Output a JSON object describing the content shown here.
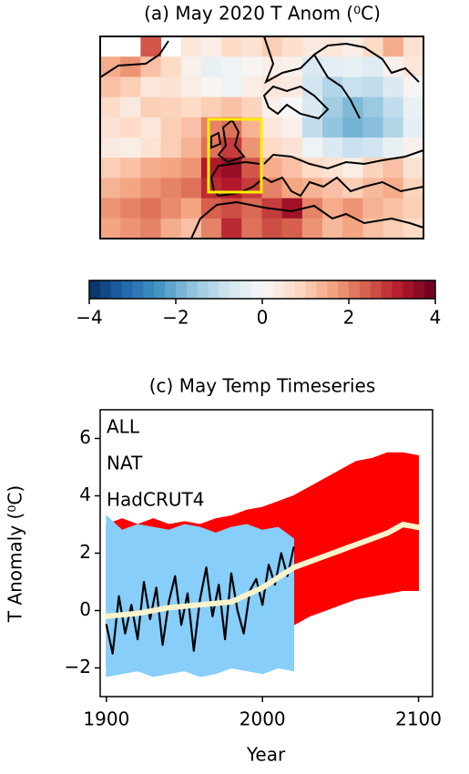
{
  "chart_data": [
    {
      "type": "heatmap",
      "title": "(a) May 2020 T Anom (⁰C)",
      "colormap": [
        "#053061",
        "#2166ac",
        "#4393c3",
        "#92c5de",
        "#d1e5f0",
        "#f7f7f7",
        "#fddbc7",
        "#f4a582",
        "#d6604d",
        "#b2182b",
        "#67001f"
      ],
      "clim": [
        -4,
        4
      ],
      "cticks": [
        {
          "value": -4,
          "label": "−4"
        },
        {
          "value": -2,
          "label": "−2"
        },
        0,
        2,
        4
      ],
      "values": [
        [
          null,
          null,
          2.5,
          null,
          0.5,
          0.3,
          0.8,
          0.6,
          1.0,
          0.7,
          0.4,
          0.5,
          0.3,
          0.8,
          1.5,
          0.6
        ],
        [
          1.5,
          1.8,
          1.2,
          0.8,
          0.2,
          -0.3,
          -0.2,
          0.1,
          0.3,
          0.2,
          -0.6,
          -0.4,
          -0.3,
          -0.5,
          0.2,
          0.5
        ],
        [
          1.2,
          1.0,
          0.5,
          0.6,
          0.3,
          0.1,
          -0.2,
          0.3,
          0.5,
          0.4,
          -0.8,
          -1.2,
          -0.9,
          -1.0,
          -0.6,
          0.1
        ],
        [
          0.8,
          0.4,
          1.0,
          0.9,
          0.8,
          1.0,
          1.2,
          0.9,
          0.2,
          0.0,
          -0.6,
          -1.4,
          -1.8,
          -1.5,
          -1.0,
          -0.3
        ],
        [
          0.6,
          0.8,
          0.5,
          1.0,
          1.2,
          2.0,
          2.2,
          1.4,
          0.5,
          0.2,
          -1.0,
          -1.6,
          -1.9,
          -1.7,
          -1.2,
          -0.4
        ],
        [
          0.4,
          0.3,
          0.6,
          1.0,
          1.4,
          2.2,
          2.8,
          1.8,
          0.8,
          0.6,
          -0.2,
          -0.6,
          -0.9,
          -0.8,
          -0.3,
          0.2
        ],
        [
          1.0,
          1.2,
          1.5,
          1.6,
          1.8,
          3.2,
          3.5,
          2.5,
          1.5,
          1.2,
          0.8,
          0.6,
          0.3,
          0.9,
          1.2,
          0.6
        ],
        [
          1.4,
          1.6,
          1.8,
          2.0,
          2.2,
          3.0,
          3.2,
          2.8,
          2.0,
          1.6,
          1.4,
          1.2,
          1.0,
          1.3,
          1.5,
          0.9
        ],
        [
          1.8,
          2.0,
          2.2,
          1.9,
          1.6,
          2.4,
          2.6,
          2.3,
          2.8,
          3.4,
          2.0,
          1.5,
          1.8,
          1.4,
          1.2,
          1.0
        ],
        [
          1.6,
          1.8,
          2.0,
          1.5,
          1.2,
          2.0,
          3.0,
          2.2,
          2.6,
          2.4,
          1.8,
          1.3,
          1.6,
          1.2,
          1.0,
          0.8
        ]
      ]
    },
    {
      "type": "line",
      "title": "(c) May Temp Timeseries",
      "xlabel": "Year",
      "ylabel": "T Anomaly (⁰C)",
      "xlim": [
        1896,
        2109
      ],
      "ylim": [
        -3,
        7
      ],
      "xticks": [
        1900,
        2000,
        2100
      ],
      "yticks": [
        {
          "value": -2,
          "label": "−2"
        },
        0,
        2,
        4,
        6
      ],
      "series": [
        {
          "name": "ALL",
          "color": "#ff0000",
          "x": [
            1900,
            1910,
            1920,
            1930,
            1940,
            1950,
            1960,
            1970,
            1980,
            1990,
            2000,
            2010,
            2020,
            2030,
            2040,
            2050,
            2060,
            2070,
            2080,
            2090,
            2100
          ],
          "low": [
            -2.0,
            -2.1,
            -2.0,
            -2.2,
            -2.0,
            -2.1,
            -2.2,
            -2.0,
            -1.8,
            -1.5,
            -1.2,
            -0.8,
            -0.5,
            -0.2,
            0.0,
            0.2,
            0.4,
            0.5,
            0.6,
            0.7,
            0.7
          ],
          "high": [
            3.0,
            3.2,
            3.0,
            3.2,
            3.0,
            3.1,
            3.0,
            3.2,
            3.3,
            3.5,
            3.6,
            3.8,
            4.0,
            4.3,
            4.6,
            4.9,
            5.2,
            5.3,
            5.5,
            5.5,
            5.4
          ]
        },
        {
          "name": "NAT",
          "color": "#87cefa",
          "x": [
            1900,
            1910,
            1920,
            1930,
            1940,
            1950,
            1960,
            1970,
            1980,
            1990,
            2000,
            2010,
            2020
          ],
          "low": [
            -2.3,
            -2.2,
            -2.1,
            -2.3,
            -2.2,
            -2.1,
            -2.3,
            -2.2,
            -2.0,
            -2.1,
            -2.2,
            -2.0,
            -2.1
          ],
          "high": [
            3.3,
            2.8,
            3.0,
            2.9,
            2.8,
            3.0,
            2.9,
            2.7,
            2.9,
            3.0,
            2.8,
            2.9,
            2.5
          ]
        },
        {
          "name": "HadCRUT4",
          "color": "#000000",
          "x": [
            1900,
            1904,
            1908,
            1912,
            1916,
            1920,
            1924,
            1928,
            1932,
            1936,
            1940,
            1944,
            1948,
            1952,
            1956,
            1960,
            1964,
            1968,
            1972,
            1976,
            1980,
            1984,
            1988,
            1992,
            1996,
            2000,
            2004,
            2008,
            2012,
            2016,
            2020
          ],
          "values": [
            -0.5,
            -1.5,
            0.5,
            -0.8,
            0.2,
            -1.0,
            1.0,
            -0.3,
            0.8,
            -1.2,
            0.3,
            1.2,
            -0.5,
            0.6,
            -1.4,
            0.4,
            1.5,
            -0.2,
            0.9,
            -1.0,
            1.3,
            0.0,
            -0.8,
            0.7,
            1.1,
            0.2,
            1.6,
            0.9,
            2.0,
            1.2,
            2.2
          ]
        },
        {
          "color": "#f8f4cc",
          "x": [
            1900,
            1920,
            1940,
            1960,
            1980,
            2000,
            2020,
            2040,
            2060,
            2080,
            2090,
            2100
          ],
          "values": [
            -0.2,
            -0.1,
            0.1,
            0.2,
            0.3,
            0.8,
            1.5,
            1.9,
            2.3,
            2.7,
            3.0,
            2.9
          ]
        }
      ]
    }
  ]
}
